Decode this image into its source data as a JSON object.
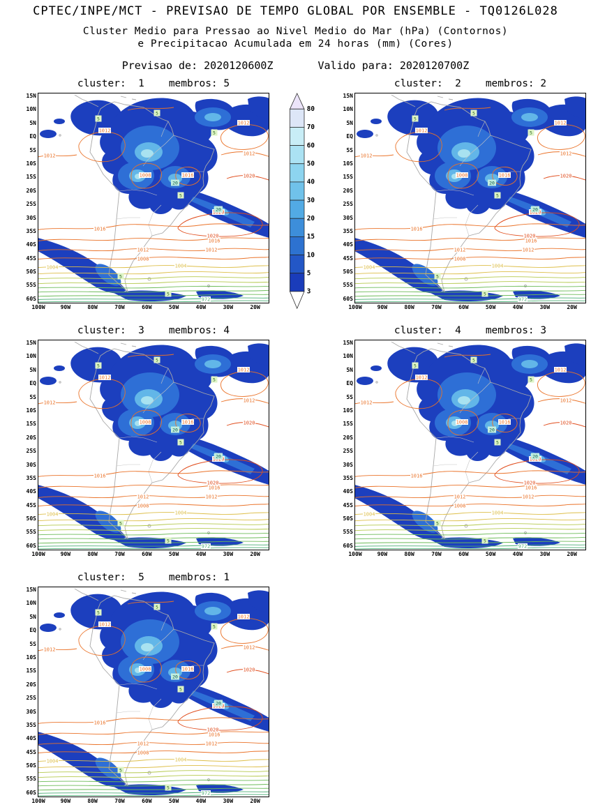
{
  "header": {
    "title": "CPTEC/INPE/MCT - PREVISAO DE TEMPO GLOBAL POR ENSEMBLE - TQ0126L028",
    "subtitle1": "Cluster Medio para Pressao ao Nivel Medio do Mar (hPa) (Contornos)",
    "subtitle2": "e Precipitacao Acumulada em 24 horas (mm) (Cores)",
    "forecast_init": "Previsao de: 2020120600Z",
    "forecast_valid": "Valido para: 2020120700Z"
  },
  "chart_data": {
    "type": "heatmap",
    "title": "Cluster Medio - Pressao ao Nivel Medio do Mar (contornos, hPa) e Precipitacao Acumulada 24h (cores, mm)",
    "panels": [
      {
        "label": "cluster:  1    membros: 5",
        "cluster": "1",
        "membros": "5"
      },
      {
        "label": "cluster:  2    membros: 2",
        "cluster": "2",
        "membros": "2"
      },
      {
        "label": "cluster:  3    membros: 4",
        "cluster": "3",
        "membros": "4"
      },
      {
        "label": "cluster:  4    membros: 3",
        "cluster": "4",
        "membros": "3"
      },
      {
        "label": "cluster:  5    membros: 1",
        "cluster": "5",
        "membros": "1"
      }
    ],
    "lat_ticks": [
      "15N",
      "10N",
      "5N",
      "EQ",
      "5S",
      "10S",
      "15S",
      "20S",
      "25S",
      "30S",
      "35S",
      "40S",
      "45S",
      "50S",
      "55S",
      "60S"
    ],
    "lon_ticks": [
      "100W",
      "90W",
      "80W",
      "70W",
      "60W",
      "50W",
      "40W",
      "30W",
      "20W"
    ],
    "colorbar": {
      "unit": "mm",
      "levels_desc": [
        "80",
        "70",
        "60",
        "50",
        "40",
        "30",
        "20",
        "15",
        "10",
        "5",
        "3"
      ],
      "colors_desc": [
        "#dde6f7",
        "#c8edf6",
        "#abe2f3",
        "#8dd4ef",
        "#70c2ea",
        "#52aae4",
        "#3d8eda",
        "#2d72d0",
        "#2357c6",
        "#1a3cba"
      ],
      "above_color": "#ece4fa",
      "below_color": "#ffffff"
    },
    "pressure_labels": {
      "p972": "972",
      "p1004": "1004",
      "p1008": "1008",
      "p1012": "1012",
      "p1016": "1016",
      "p1020": "1020"
    },
    "precip_labels": {
      "five": "5",
      "twenty": "20"
    },
    "map_colors": {
      "rain_low": "#1c3fbe",
      "rain_mid": "#2e6fd6",
      "rain_high": "#62b6e8",
      "rain_top": "#a8e2f0",
      "coast": "#a8a8a8",
      "border": "#c4c4c4",
      "cont_high": "#e04c1c",
      "cont_midhigh": "#ea7228",
      "cont_yellow": "#ddbe48",
      "cont_ygreen": "#b5c94e",
      "cont_green": "#6cbb58",
      "cont_lowgreen": "#49ad74",
      "label_five_bg": "#def4c6",
      "label_five_text": "#2a641e",
      "label_twenty_bg": "#c2eee0",
      "label_twenty_text": "#0e5a46"
    }
  }
}
